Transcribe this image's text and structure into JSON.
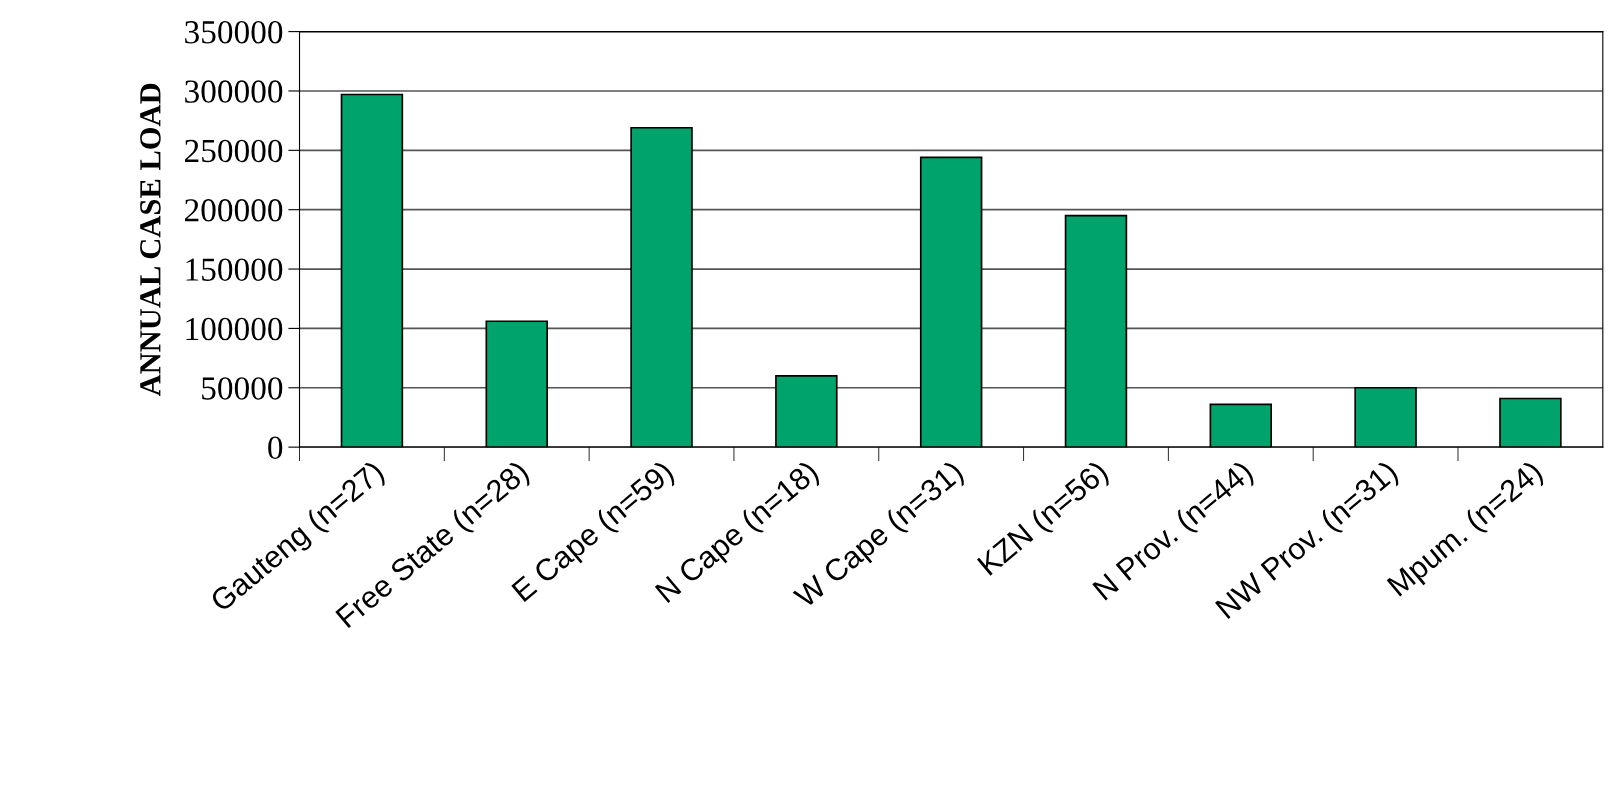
{
  "chart_data": {
    "type": "bar",
    "ylabel": "ANNUAL CASE LOAD",
    "categories": [
      "Gauteng (n=27)",
      "Free State (n=28)",
      "E Cape (n=59)",
      "N Cape (n=18)",
      "W Cape (n=31)",
      "KZN (n=56)",
      "N Prov. (n=44)",
      "NW Prov. (n=31)",
      "Mpum. (n=24)"
    ],
    "values": [
      297000,
      106000,
      269000,
      60000,
      244000,
      195000,
      36000,
      50000,
      41000
    ],
    "color": "#00a36c",
    "ylim": [
      0,
      350000
    ],
    "yticks": [
      0,
      50000,
      100000,
      150000,
      200000,
      250000,
      300000,
      350000
    ],
    "grid": "y"
  }
}
